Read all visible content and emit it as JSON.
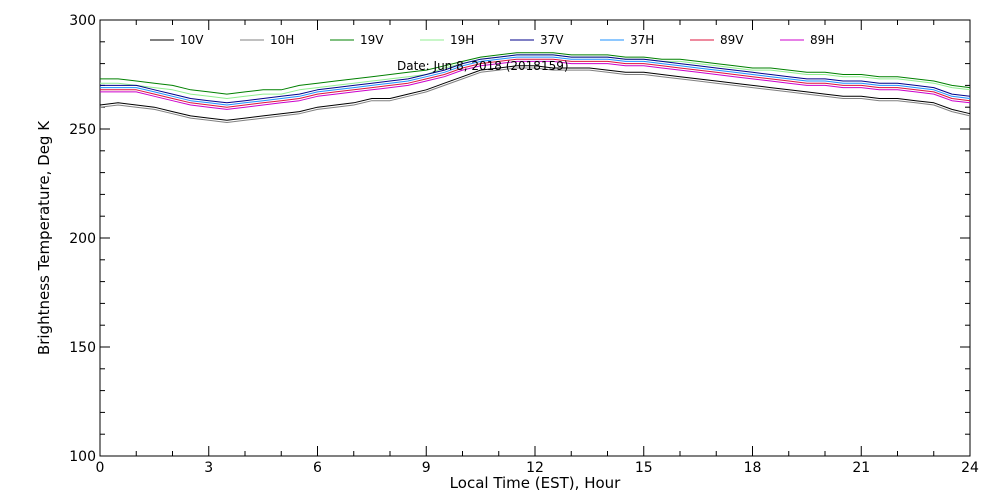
{
  "chart_data": {
    "type": "line",
    "title": "",
    "xlabel": "Local Time (EST), Hour",
    "ylabel": "Brightness Temperature, Deg  K",
    "xlim": [
      0,
      24
    ],
    "ylim": [
      100,
      300
    ],
    "xticks": [
      0,
      3,
      6,
      9,
      12,
      15,
      18,
      21,
      24
    ],
    "xtick_labels": [
      "0",
      "3",
      "6",
      "9",
      "12",
      "15",
      "18",
      "21",
      "24"
    ],
    "yticks": [
      100,
      150,
      200,
      250,
      300
    ],
    "ytick_labels": [
      "100",
      "150",
      "200",
      "250",
      "300"
    ],
    "grid": false,
    "legend_position": "top",
    "annotation": "Date: Jun  8, 2018 (2018159)",
    "x": [
      0,
      0.5,
      1,
      1.5,
      2,
      2.5,
      3,
      3.5,
      4,
      4.5,
      5,
      5.5,
      6,
      6.5,
      7,
      7.5,
      8,
      8.5,
      9,
      9.5,
      10,
      10.5,
      11,
      11.5,
      12,
      12.5,
      13,
      13.5,
      14,
      14.5,
      15,
      15.5,
      16,
      16.5,
      17,
      17.5,
      18,
      18.5,
      19,
      19.5,
      20,
      20.5,
      21,
      21.5,
      22,
      22.5,
      23,
      23.5,
      24
    ],
    "series": [
      {
        "name": "10V",
        "color": "#000000",
        "values": [
          261,
          262,
          261,
          260,
          258,
          256,
          255,
          254,
          255,
          256,
          257,
          258,
          260,
          261,
          262,
          264,
          264,
          266,
          268,
          271,
          274,
          277,
          278,
          279,
          279,
          278,
          278,
          278,
          277,
          276,
          276,
          275,
          274,
          273,
          272,
          271,
          270,
          269,
          268,
          267,
          266,
          265,
          265,
          264,
          264,
          263,
          262,
          259,
          257
        ]
      },
      {
        "name": "10H",
        "color": "#808080",
        "values": [
          260,
          261,
          260,
          259,
          257,
          255,
          254,
          253,
          254,
          255,
          256,
          257,
          259,
          260,
          261,
          263,
          263,
          265,
          267,
          270,
          273,
          276,
          277,
          278,
          278,
          277,
          277,
          277,
          276,
          275,
          275,
          274,
          273,
          272,
          271,
          270,
          269,
          268,
          267,
          266,
          265,
          264,
          264,
          263,
          263,
          262,
          261,
          258,
          256
        ]
      },
      {
        "name": "19V",
        "color": "#008000",
        "values": [
          273,
          273,
          272,
          271,
          270,
          268,
          267,
          266,
          267,
          268,
          268,
          270,
          271,
          272,
          273,
          274,
          275,
          276,
          277,
          279,
          281,
          283,
          284,
          285,
          285,
          285,
          284,
          284,
          284,
          283,
          283,
          282,
          282,
          281,
          280,
          279,
          278,
          278,
          277,
          276,
          276,
          275,
          275,
          274,
          274,
          273,
          272,
          270,
          269
        ]
      },
      {
        "name": "19H",
        "color": "#90EE90",
        "values": [
          271,
          271,
          270,
          269,
          268,
          266,
          265,
          264,
          265,
          266,
          266,
          268,
          269,
          270,
          271,
          272,
          273,
          274,
          275,
          278,
          280,
          282,
          283,
          284,
          284,
          284,
          283,
          283,
          283,
          282,
          282,
          281,
          281,
          280,
          279,
          278,
          277,
          277,
          276,
          275,
          275,
          274,
          274,
          273,
          273,
          272,
          271,
          269,
          268
        ]
      },
      {
        "name": "37V",
        "color": "#00008B",
        "values": [
          270,
          270,
          270,
          268,
          266,
          264,
          263,
          262,
          263,
          264,
          265,
          266,
          268,
          269,
          270,
          271,
          272,
          273,
          275,
          277,
          280,
          282,
          283,
          284,
          284,
          284,
          283,
          283,
          283,
          282,
          282,
          281,
          280,
          279,
          278,
          277,
          276,
          275,
          274,
          273,
          273,
          272,
          272,
          271,
          271,
          270,
          269,
          266,
          265
        ]
      },
      {
        "name": "37H",
        "color": "#1E90FF",
        "values": [
          269,
          269,
          269,
          267,
          265,
          263,
          262,
          261,
          262,
          263,
          264,
          265,
          267,
          268,
          269,
          270,
          271,
          272,
          274,
          276,
          279,
          281,
          282,
          283,
          283,
          283,
          282,
          282,
          282,
          281,
          281,
          280,
          279,
          278,
          277,
          276,
          275,
          274,
          273,
          272,
          272,
          271,
          271,
          270,
          270,
          269,
          268,
          265,
          264
        ]
      },
      {
        "name": "89V",
        "color": "#DC143C",
        "values": [
          268,
          268,
          268,
          266,
          264,
          262,
          261,
          260,
          261,
          262,
          263,
          264,
          266,
          267,
          268,
          269,
          270,
          271,
          273,
          275,
          278,
          280,
          281,
          282,
          282,
          282,
          281,
          281,
          281,
          280,
          280,
          279,
          278,
          277,
          276,
          275,
          274,
          273,
          272,
          271,
          271,
          270,
          270,
          269,
          269,
          268,
          267,
          264,
          263
        ]
      },
      {
        "name": "89H",
        "color": "#CC00CC",
        "values": [
          267,
          267,
          267,
          265,
          263,
          261,
          260,
          259,
          260,
          261,
          262,
          263,
          265,
          266,
          267,
          268,
          269,
          270,
          272,
          274,
          277,
          279,
          280,
          281,
          281,
          281,
          280,
          280,
          280,
          279,
          279,
          278,
          277,
          276,
          275,
          274,
          273,
          272,
          271,
          270,
          270,
          269,
          269,
          268,
          268,
          267,
          266,
          263,
          262
        ]
      }
    ]
  }
}
